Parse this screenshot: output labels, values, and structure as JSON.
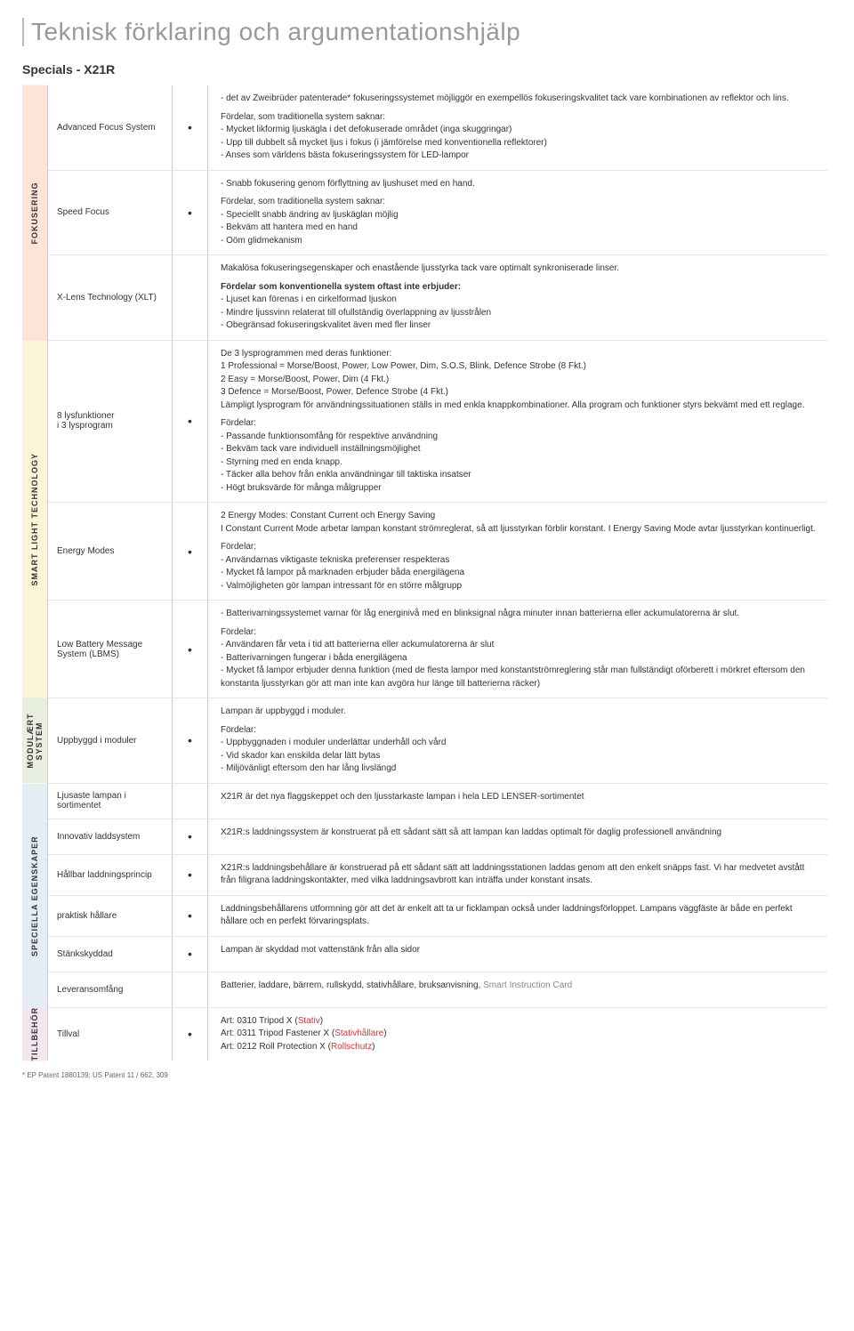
{
  "page": {
    "title": "Teknisk förklaring och argumentationshjälp",
    "subtitle": "Specials - X21R",
    "footnote": "* EP Patent 1880139; US Patent 11 / 662, 309"
  },
  "categories": [
    {
      "label": "FOKUSERING",
      "bg": "#fde4d8",
      "rows": 3
    },
    {
      "label": "SMART LIGHT TECHNOLOGY",
      "bg": "#fcf4d6",
      "rows": 3
    },
    {
      "label": "MODULÆRT SYSTEM",
      "bg": "#e8efe0",
      "rows": 1
    },
    {
      "label": "SPECIELLA EGENSKAPER",
      "bg": "#e4ecf4",
      "rows": 6
    },
    {
      "label": "TILLBEHÖR",
      "bg": "#f4e6ef",
      "rows": 1
    }
  ],
  "rows": [
    {
      "feature": "Advanced Focus System",
      "dot": "•",
      "desc_html": "<p>- det av Zweibrüder patenterade* fokuseringssystemet möjliggör en exempellös fokuseringskvalitet tack vare kombinationen av reflektor och lins.</p><p>Fördelar, som traditionella system saknar:<br>- Mycket likformig ljuskägla i det defokuserade området (inga skuggringar)<br>- Upp till dubbelt så mycket ljus i fokus (i jämförelse med konventionella reflektorer)<br>- Anses som världens bästa fokuseringssystem för LED-lampor</p>"
    },
    {
      "feature": "Speed Focus",
      "dot": "•",
      "desc_html": "<p>- Snabb fokusering genom förflyttning av ljushuset med en hand.</p><p>Fördelar, som traditionella system saknar:<br>- Speciellt snabb ändring av ljuskäglan möjlig<br>- Bekväm att hantera med en hand<br>- Oöm glidmekanism</p>"
    },
    {
      "feature": "X-Lens Technology (XLT)",
      "dot": "",
      "desc_html": "<p>Makalösa fokuseringsegenskaper och enastående ljusstyrka tack vare optimalt synkroniserade linser.</p><p><span class='hl'>Fördelar som konventionella system oftast inte erbjuder:</span><br>- Ljuset kan förenas i en cirkelformad ljuskon<br>- Mindre ljussvinn relaterat till ofullständig överlappning av ljusstrålen<br>- Obegränsad fokuseringskvalitet även med fler linser</p>"
    },
    {
      "feature": "8 lysfunktioner\ni 3 lysprogram",
      "dot": "•",
      "desc_html": "<p>De 3 lysprogrammen med deras funktioner:<br>1 Professional = Morse/Boost, Power, Low Power, Dim, S.O.S, Blink, Defence Strobe (8 Fkt.)<br>2 Easy = Morse/Boost, Power, Dim  (4 Fkt.)<br>3 Defence = Morse/Boost, Power, Defence Strobe  (4 Fkt.)<br>Lämpligt lysprogram för användningssituationen ställs in med enkla knappkombinationer. Alla program och funktioner styrs bekvämt med ett reglage.</p><p>Fördelar:<br>- Passande funktionsomfång för respektive användning<br>- Bekväm tack vare individuell inställningsmöjlighet<br>- Styrning med en enda knapp.<br>- Täcker alla behov från enkla användningar till taktiska insatser<br>- Högt bruksvärde för många målgrupper</p>"
    },
    {
      "feature": "Energy Modes",
      "dot": "•",
      "desc_html": "<p>2 Energy Modes: Constant Current och Energy Saving<br>I Constant Current Mode arbetar lampan konstant strömreglerat, så att ljusstyrkan förblir konstant. I Energy Saving Mode avtar ljusstyrkan kontinuerligt.</p><p>Fördelar:<br>- Användarnas viktigaste tekniska preferenser respekteras<br>- Mycket få lampor på marknaden erbjuder båda energilägena<br>- Valmöjligheten gör lampan intressant för en större målgrupp</p>"
    },
    {
      "feature": "Low Battery Message System (LBMS)",
      "dot": "•",
      "desc_html": "<p>- Batterivarningssystemet varnar för låg energinivå med en blinksignal några minuter innan batterierna eller ackumulatorerna är slut.</p><p>Fördelar:<br>- Användaren får veta i tid att batterierna eller ackumulatorerna är slut<br>- Batterivarningen fungerar i båda energilägena<br>- Mycket få lampor erbjuder denna funktion (med de flesta lampor med konstantströmreglering står man fullständigt oförberett i mörkret eftersom den konstanta ljusstyrkan gör att man inte kan avgöra hur länge till batterierna räcker)</p>"
    },
    {
      "feature": "Uppbyggd i moduler",
      "dot": "•",
      "desc_html": "<p>Lampan är uppbyggd i moduler.</p><p>Fördelar:<br>- Uppbyggnaden i moduler underlättar underhåll och vård<br>- Vid skador kan enskilda delar lätt bytas<br>- Miljövänligt eftersom den har lång livslängd</p>"
    },
    {
      "feature": "Ljusaste lampan i sortimentet",
      "dot": "",
      "desc_html": "<p>X21R är det nya flaggskeppet och den ljusstarkaste lampan i hela LED LENSER-sortimentet</p>"
    },
    {
      "feature": "Innovativ laddsystem",
      "dot": "•",
      "desc_html": "<p>X21R:s laddningssystem är konstruerat på ett sådant sätt så att lampan kan laddas optimalt för daglig professionell användning</p>"
    },
    {
      "feature": "Hållbar laddningsprincip",
      "dot": "•",
      "desc_html": "<p>X21R:s laddningsbehållare är konstruerad på ett sådant sätt att laddningsstationen laddas genom att den enkelt snäpps fast. Vi har medvetet avstått från filigrana laddningskontakter, med vilka laddningsavbrott kan inträffa under konstant insats.</p>"
    },
    {
      "feature": "praktisk hållare",
      "dot": "•",
      "desc_html": "<p>Laddningsbehållarens utformning gör att det är enkelt att ta ur ficklampan också under laddningsförloppet. Lampans väggfäste är både en perfekt hållare och en perfekt förvaringsplats.</p>"
    },
    {
      "feature": "Stänkskyddad",
      "dot": "•",
      "desc_html": "<p>Lampan är skyddad mot vattenstänk från alla sidor</p>"
    },
    {
      "feature": "Leveransomfång",
      "dot": "",
      "desc_html": "<p>Batterier, laddare, bärrem, rullskydd, stativhållare, bruksanvisning, <span style='color:#888'>Smart Instruction Card</span></p>"
    },
    {
      "feature": "Tillval",
      "dot": "•",
      "desc_html": "<p>Art: 0310  Tripod X (<span class='red'>Stativ</span>)<br>Art: 0311  Tripod Fastener X (<span class='red'>Stativhållare</span>)<br>Art: 0212  Roll Protection X (<span class='red'>Rollschutz</span>)</p>"
    }
  ]
}
